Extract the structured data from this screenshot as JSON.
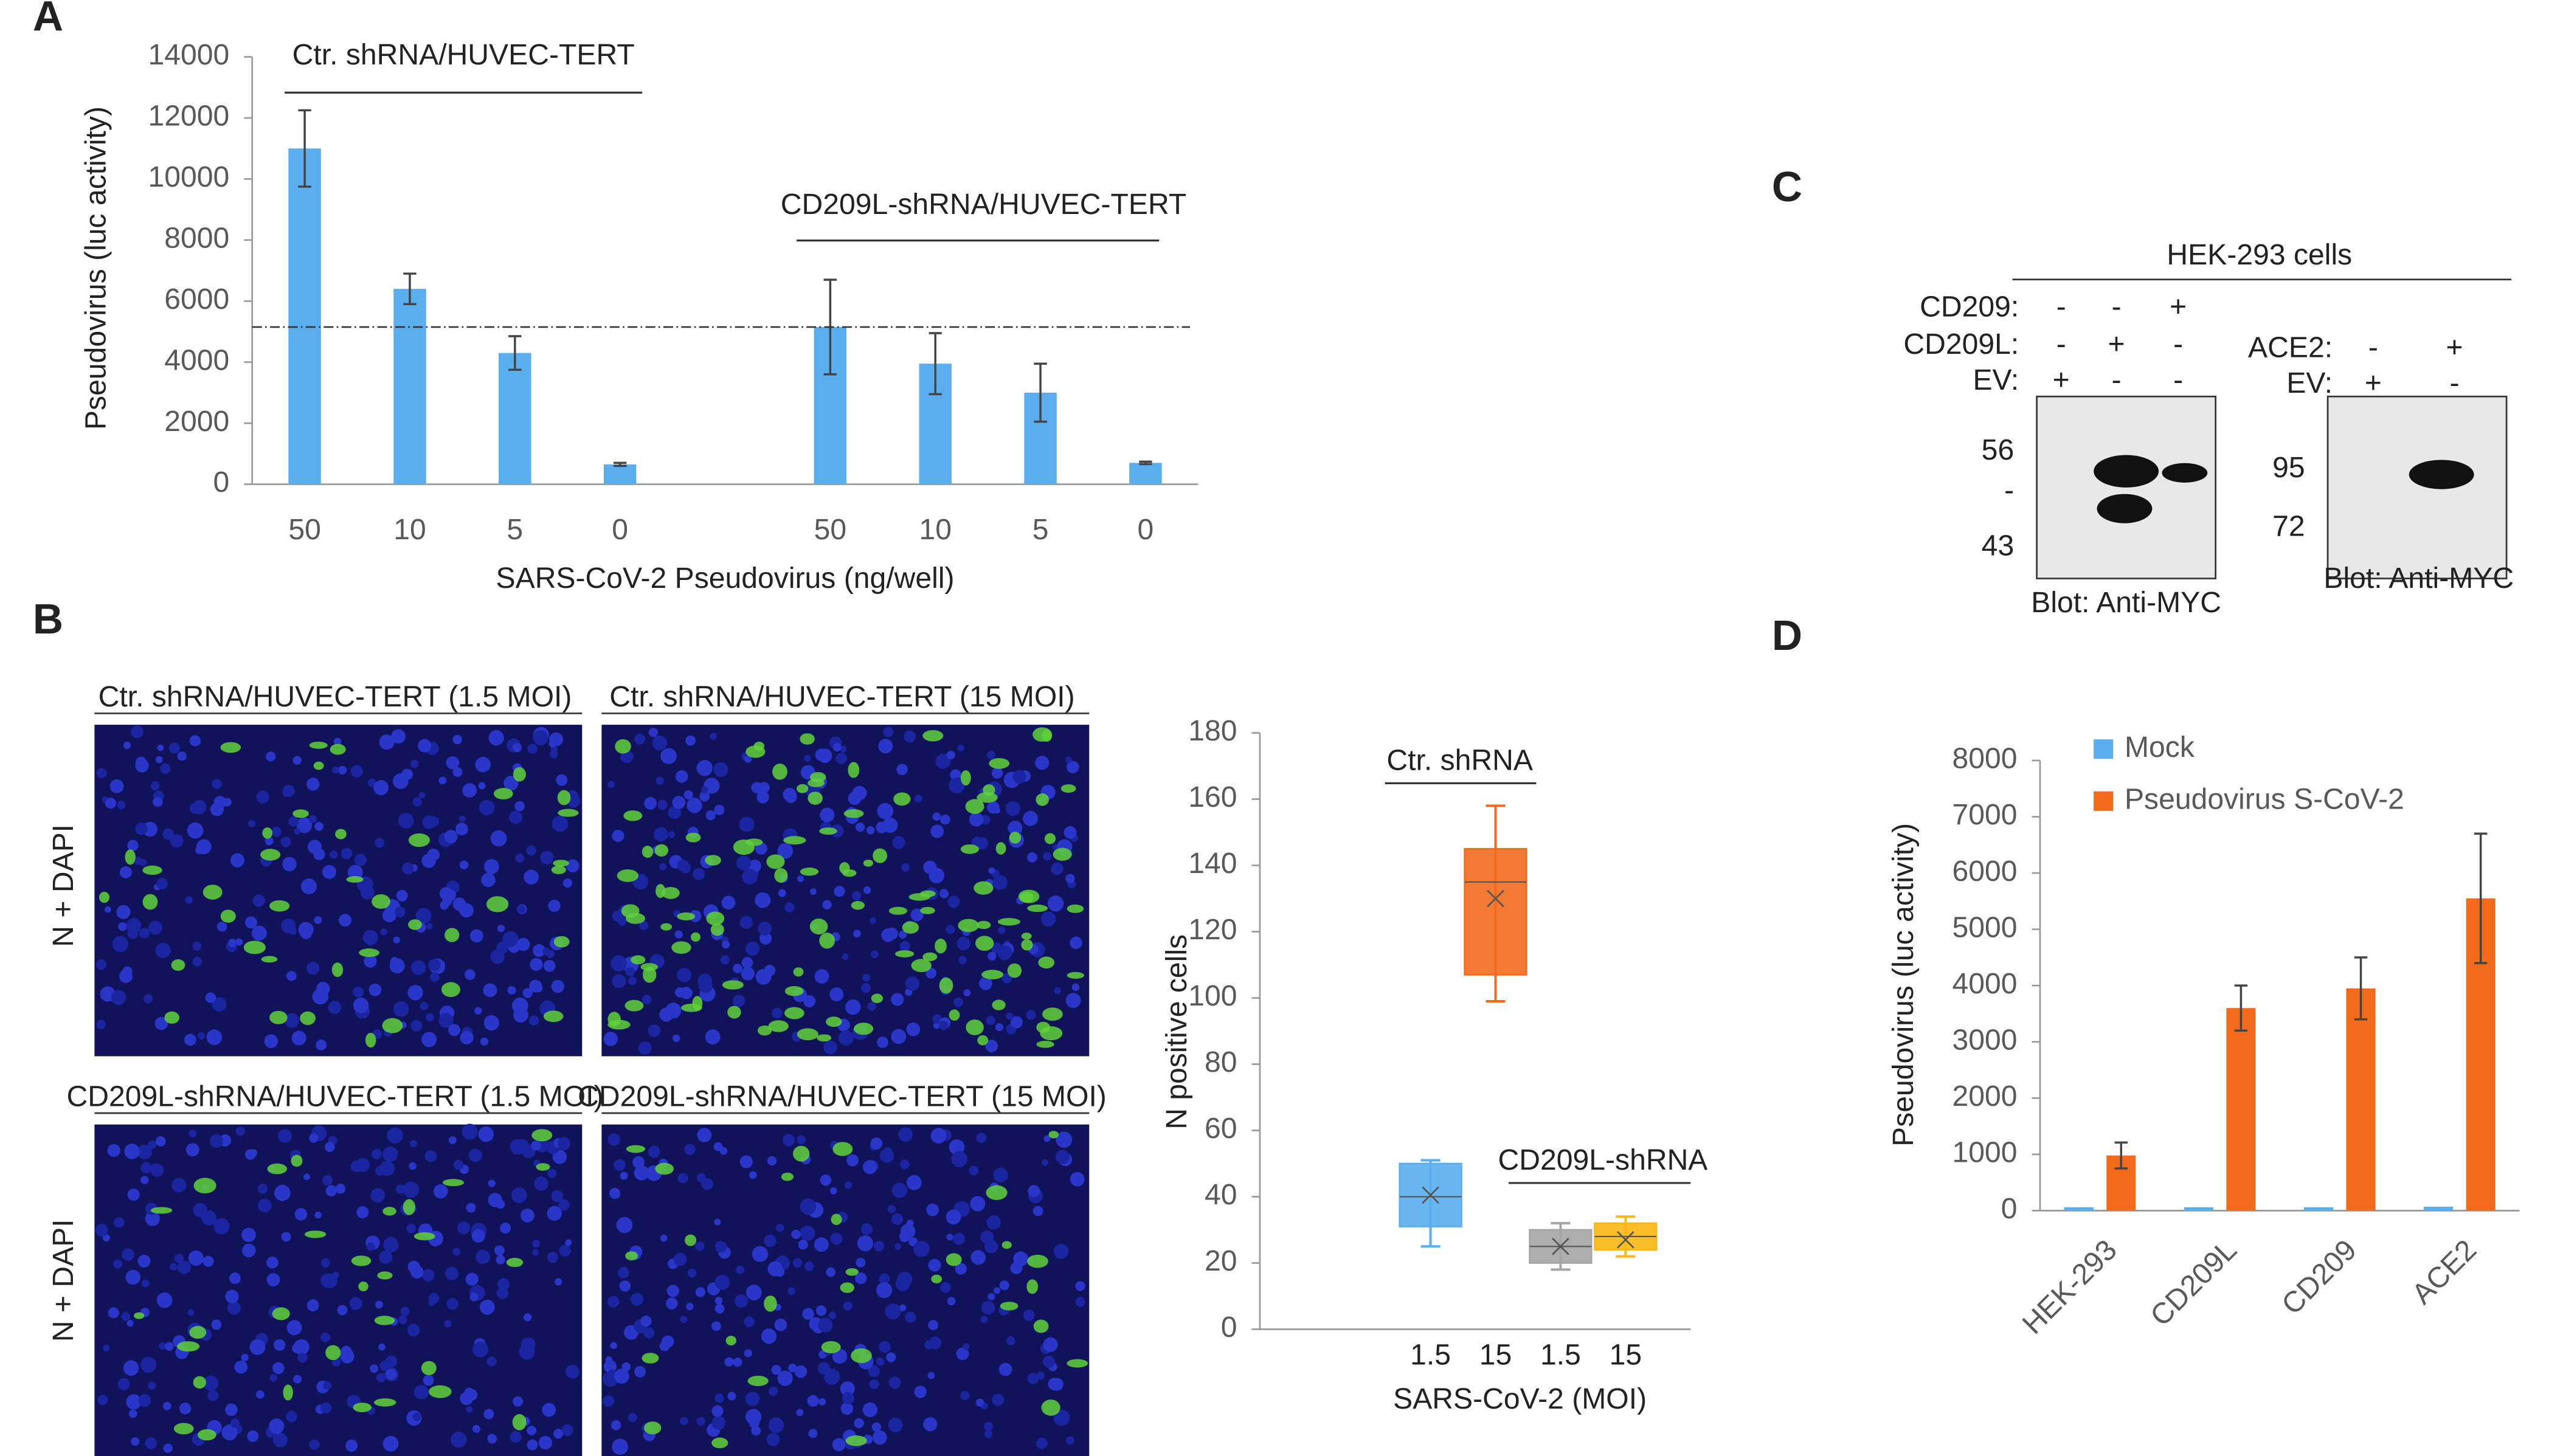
{
  "panels": [
    "A",
    "B",
    "C",
    "D"
  ],
  "chart_data": [
    {
      "type": "bar",
      "ylabel": "Pseudovirus (luc activity)",
      "xlabel": "SARS-CoV-2  Pseudovirus (ng/well)",
      "categories": [
        "50",
        "10",
        "5",
        "0",
        null,
        "50",
        "10",
        "5",
        "0"
      ],
      "values": [
        11000,
        6400,
        4300,
        650,
        null,
        5150,
        3950,
        3000,
        700
      ],
      "errors": [
        1250,
        500,
        550,
        50,
        null,
        1550,
        1000,
        950,
        40
      ],
      "color": "#5aaeee",
      "reference_line": 5150,
      "ylim": [
        0,
        14000
      ],
      "yticks": [
        0,
        2000,
        4000,
        6000,
        8000,
        10000,
        12000,
        14000
      ],
      "grid": false,
      "annotations": [
        "Ctr. shRNA/HUVEC-TERT",
        "CD209L-shRNA/HUVEC-TERT"
      ]
    },
    {
      "type": "box",
      "ylabel": "N positive cells",
      "xlabel": "SARS-CoV-2 (MOI)",
      "categories": [
        "1.5",
        "15",
        "1.5",
        "15"
      ],
      "boxes": [
        {
          "min": 25,
          "q1": 31,
          "median": 40,
          "q3": 50,
          "max": 51,
          "mean": 40.5
        },
        {
          "min": 99,
          "q1": 107,
          "median": 135,
          "q3": 145,
          "max": 158,
          "mean": 130
        },
        {
          "min": 18,
          "q1": 20,
          "median": 25,
          "q3": 30,
          "max": 32,
          "mean": 25
        },
        {
          "min": 22,
          "q1": 24,
          "median": 28,
          "q3": 32,
          "max": 34,
          "mean": 27
        }
      ],
      "colors": [
        "#5aaeee",
        "#f26b1d",
        "#a5a5a5",
        "#fbb714"
      ],
      "ylim": [
        0,
        180
      ],
      "yticks": [
        0,
        20,
        40,
        60,
        80,
        100,
        120,
        140,
        160,
        180
      ],
      "grid": false,
      "annotations": [
        "Ctr. shRNA",
        "CD209L-shRNA"
      ]
    },
    {
      "type": "bar",
      "ylabel": "Pseudovirus (luc activity)",
      "categories": [
        "HEK-293",
        "CD209L",
        "CD209",
        "ACE2"
      ],
      "series": [
        {
          "name": "Mock",
          "color": "#5aaeee",
          "values": [
            60,
            60,
            60,
            70
          ]
        },
        {
          "name": "Pseudovirus S-CoV-2",
          "color": "#f26b1d",
          "values": [
            980,
            3600,
            3950,
            5550
          ],
          "errors": [
            230,
            400,
            550,
            1150
          ]
        }
      ],
      "ylim": [
        0,
        8000
      ],
      "yticks": [
        0,
        1000,
        2000,
        3000,
        4000,
        5000,
        6000,
        7000,
        8000
      ],
      "grid": false,
      "legend": "top-left"
    }
  ],
  "images": {
    "row_label": "N + DAPI",
    "captions": [
      "Ctr. shRNA/HUVEC-TERT (1.5 MOI)",
      "Ctr. shRNA/HUVEC-TERT (15 MOI)",
      "CD209L-shRNA/HUVEC-TERT (1.5 MOI)",
      "CD209L-shRNA/HUVEC-TERT (15 MOI)"
    ]
  },
  "blot": {
    "title": "HEK-293 cells",
    "left": {
      "rows": [
        {
          "label": "CD209:",
          "signs": [
            "-",
            "-",
            "+"
          ]
        },
        {
          "label": "CD209L:",
          "signs": [
            "-",
            "+",
            "-"
          ]
        },
        {
          "label": "EV:",
          "signs": [
            "+",
            "-",
            "-"
          ]
        }
      ],
      "markers": [
        "56",
        "-",
        "43"
      ],
      "caption": "Blot: Anti-MYC"
    },
    "right": {
      "rows": [
        {
          "label": "ACE2:",
          "signs": [
            "-",
            "+"
          ]
        },
        {
          "label": "EV:",
          "signs": [
            "+",
            "-"
          ]
        }
      ],
      "markers": [
        "95",
        "72"
      ],
      "caption": "Blot: Anti-MYC"
    }
  }
}
